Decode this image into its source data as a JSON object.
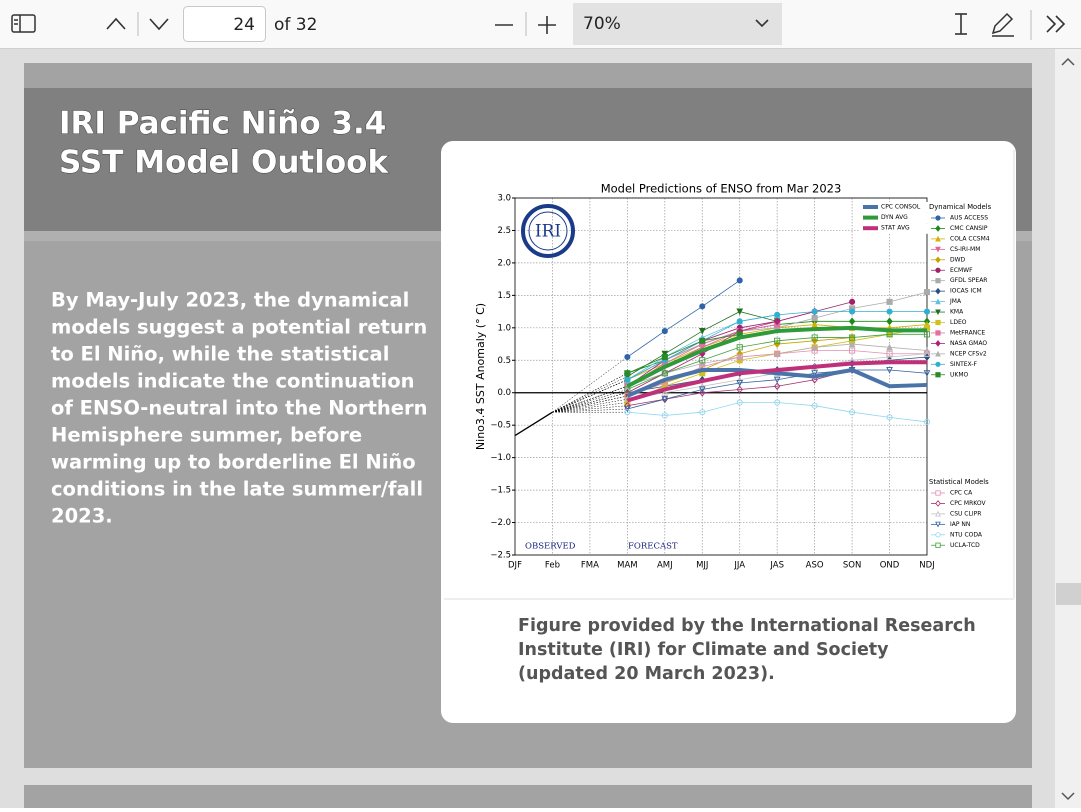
{
  "toolbar": {
    "page_number": "24",
    "page_total": "of 32",
    "zoom": "70%"
  },
  "slide": {
    "title": [
      "IRI Pacific Niño 3.4",
      "SST Model Outlook"
    ],
    "body": [
      "By May-July 2023, the dynamical",
      "models suggest a potential return",
      "to El Niño, while the statistical",
      "models indicate the continuation",
      "of ENSO-neutral into the Northern",
      "Hemisphere summer, before",
      "warming up to borderline El Niño",
      "conditions in the late summer/fall",
      "2023."
    ],
    "caption": [
      "Figure provided by the International Research",
      "Institute (IRI) for Climate and Society",
      "(updated 20 March 2023)."
    ]
  },
  "chart_data": {
    "type": "line",
    "title": "Model Predictions of ENSO from Mar 2023",
    "y_label": "Nino3.4 SST Anomaly (° C)",
    "logo_text": "IRI",
    "annotations": [
      "OBSERVED",
      "FORECAST"
    ],
    "categories": [
      "DJF",
      "Feb",
      "FMA",
      "MAM",
      "AMJ",
      "MJJ",
      "JJA",
      "JAS",
      "ASO",
      "SON",
      "OND",
      "NDJ"
    ],
    "ylim": [
      -2.5,
      3.0
    ],
    "yticks": [
      {
        "value": -2.5,
        "label": "−2.5"
      },
      {
        "value": -2.0,
        "label": "−2.0"
      },
      {
        "value": -1.5,
        "label": "−1.5"
      },
      {
        "value": -1.0,
        "label": "−1.0"
      },
      {
        "value": -0.5,
        "label": "−0.5"
      },
      {
        "value": 0.0,
        "label": "0.0"
      },
      {
        "value": 0.5,
        "label": "0.5"
      },
      {
        "value": 1.0,
        "label": "1.0"
      },
      {
        "value": 1.5,
        "label": "1.5"
      },
      {
        "value": 2.0,
        "label": "2.0"
      },
      {
        "value": 2.5,
        "label": "2.5"
      },
      {
        "value": 3.0,
        "label": "3.0"
      }
    ],
    "grid": true,
    "observed": {
      "color": "#000000",
      "values": [
        -0.66,
        -0.3,
        null,
        null,
        null,
        null,
        null,
        null,
        null,
        null,
        null,
        null
      ]
    },
    "series": [
      {
        "name": "CPC CONSOL",
        "color": "#4a74a8",
        "values": [
          null,
          null,
          null,
          -0.05,
          0.2,
          0.35,
          0.35,
          0.3,
          0.25,
          0.35,
          0.1,
          0.12
        ]
      },
      {
        "name": "DYN AVG",
        "color": "#2e9a3a",
        "values": [
          null,
          null,
          null,
          0.1,
          0.4,
          0.65,
          0.85,
          0.95,
          0.98,
          1.0,
          0.96,
          0.96
        ]
      },
      {
        "name": "STAT AVG",
        "color": "#c0307a",
        "values": [
          null,
          null,
          null,
          -0.12,
          0.05,
          0.18,
          0.3,
          0.35,
          0.4,
          0.45,
          0.47,
          0.47
        ]
      }
    ],
    "dynamical_models": {
      "title": "Dynamical Models",
      "hollow": false,
      "series": [
        {
          "name": "AUS ACCESS",
          "color": "#2f64a8",
          "marker": "o",
          "values": [
            null,
            null,
            null,
            0.55,
            0.95,
            1.33,
            1.73,
            null,
            null,
            null,
            null,
            null
          ]
        },
        {
          "name": "CMC CANSIP",
          "color": "#1a8a1a",
          "marker": "D",
          "values": [
            null,
            null,
            null,
            0.3,
            0.5,
            0.75,
            0.95,
            1.05,
            1.1,
            1.1,
            1.1,
            1.1
          ]
        },
        {
          "name": "COLA CCSM4",
          "color": "#d4b000",
          "marker": "^",
          "values": [
            null,
            null,
            null,
            0.2,
            0.45,
            0.7,
            0.9,
            1.0,
            1.05,
            1.0,
            1.0,
            1.05
          ]
        },
        {
          "name": "CS-IRI-MM",
          "color": "#e0609a",
          "marker": "v",
          "values": [
            null,
            null,
            null,
            0.1,
            0.4,
            0.7,
            0.95,
            1.05,
            null,
            null,
            null,
            null
          ]
        },
        {
          "name": "DWD",
          "color": "#c8a000",
          "marker": "D",
          "values": [
            null,
            null,
            null,
            -0.05,
            0.15,
            0.35,
            0.6,
            0.75,
            0.8,
            0.85,
            null,
            null
          ]
        },
        {
          "name": "ECMWF",
          "color": "#a0206a",
          "marker": "o",
          "values": [
            null,
            null,
            null,
            0.1,
            0.5,
            0.8,
            1.0,
            1.1,
            1.25,
            1.4,
            null,
            null
          ]
        },
        {
          "name": "GFDL SPEAR",
          "color": "#aaaaaa",
          "marker": "s",
          "values": [
            null,
            null,
            null,
            0.2,
            0.5,
            0.75,
            0.95,
            1.0,
            1.15,
            1.3,
            1.4,
            1.55
          ]
        },
        {
          "name": "IOCAS ICM",
          "color": "#2a4f80",
          "marker": "D",
          "values": [
            null,
            null,
            null,
            0.0,
            0.1,
            0.2,
            0.3,
            0.35,
            0.4,
            0.45,
            0.5,
            0.55
          ]
        },
        {
          "name": "JMA",
          "color": "#60c0e0",
          "marker": "^",
          "values": [
            null,
            null,
            null,
            0.2,
            0.55,
            0.85,
            1.1,
            1.2,
            null,
            null,
            null,
            null
          ]
        },
        {
          "name": "KMA",
          "color": "#207020",
          "marker": "v",
          "values": [
            null,
            null,
            null,
            0.25,
            0.6,
            0.95,
            1.25,
            1.1,
            null,
            null,
            null,
            null
          ]
        },
        {
          "name": "LDEO",
          "color": "#d0c020",
          "marker": "s",
          "values": [
            null,
            null,
            null,
            -0.15,
            0.1,
            0.3,
            0.5,
            0.6,
            0.7,
            0.8,
            0.9,
            1.0
          ]
        },
        {
          "name": "MetFRANCE",
          "color": "#e070a0",
          "marker": "s",
          "values": [
            null,
            null,
            null,
            0.1,
            0.45,
            0.75,
            0.95,
            1.05,
            null,
            null,
            null,
            null
          ]
        },
        {
          "name": "NASA GMAO",
          "color": "#b0207a",
          "marker": "D",
          "values": [
            null,
            null,
            null,
            0.0,
            0.3,
            0.6,
            0.95,
            1.1,
            1.25,
            null,
            null,
            null
          ]
        },
        {
          "name": "NCEP CFSv2",
          "color": "#b0b0b0",
          "marker": "^",
          "values": [
            null,
            null,
            null,
            0.1,
            0.3,
            0.45,
            0.55,
            0.6,
            0.7,
            0.75,
            0.7,
            0.65
          ]
        },
        {
          "name": "SINTEX-F",
          "color": "#30b0d0",
          "marker": "o",
          "values": [
            null,
            null,
            null,
            0.2,
            0.5,
            0.8,
            1.1,
            1.2,
            1.25,
            1.25,
            1.25,
            1.25
          ]
        },
        {
          "name": "UKMO",
          "color": "#2a8a2a",
          "marker": "s",
          "values": [
            null,
            null,
            null,
            0.3,
            0.55,
            0.8,
            0.9,
            null,
            null,
            null,
            null,
            null
          ]
        }
      ]
    },
    "statistical_models": {
      "title": "Statistical Models",
      "hollow": true,
      "series": [
        {
          "name": "CPC CA",
          "color": "#e090b0",
          "marker": "s",
          "values": [
            null,
            null,
            null,
            -0.05,
            0.15,
            0.4,
            0.55,
            0.6,
            0.65,
            0.65,
            0.6,
            0.6
          ]
        },
        {
          "name": "CPC MRKOV",
          "color": "#a03070",
          "marker": "D",
          "values": [
            null,
            null,
            null,
            -0.2,
            -0.1,
            0.0,
            0.05,
            0.1,
            0.2,
            0.35,
            null,
            null
          ]
        },
        {
          "name": "CSU CLIPR",
          "color": "#c0c0c0",
          "marker": "^",
          "values": [
            null,
            null,
            null,
            -0.1,
            0.0,
            0.1,
            0.2,
            0.3,
            0.4,
            0.5,
            0.55,
            0.6
          ]
        },
        {
          "name": "IAP NN",
          "color": "#3060a0",
          "marker": "v",
          "values": [
            null,
            null,
            null,
            -0.25,
            -0.1,
            0.05,
            0.15,
            0.2,
            0.3,
            0.35,
            0.35,
            0.3
          ]
        },
        {
          "name": "NTU CODA",
          "color": "#90d8f0",
          "marker": "o",
          "values": [
            null,
            null,
            null,
            -0.3,
            -0.35,
            -0.3,
            -0.15,
            -0.15,
            -0.2,
            -0.3,
            -0.38,
            -0.45
          ]
        },
        {
          "name": "UCLA-TCD",
          "color": "#40a040",
          "marker": "s",
          "values": [
            null,
            null,
            null,
            0.05,
            0.3,
            0.5,
            0.7,
            0.8,
            0.85,
            0.85,
            0.9,
            0.9
          ]
        }
      ]
    }
  }
}
